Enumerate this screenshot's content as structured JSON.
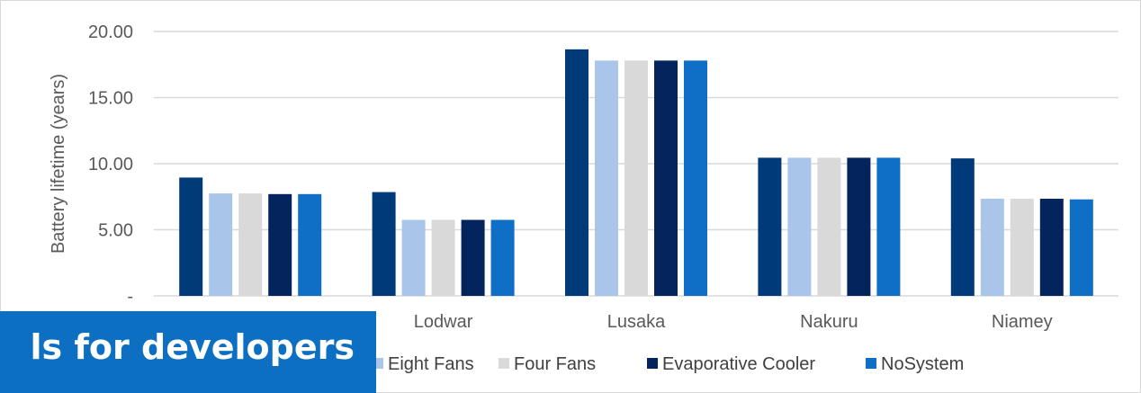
{
  "chart_data": {
    "type": "bar",
    "title": "",
    "xlabel": "",
    "ylabel": "Battery lifetime (years)",
    "ylim": [
      0,
      20
    ],
    "yticks": [
      {
        "value": 0,
        "label": "-"
      },
      {
        "value": 5,
        "label": "5.00"
      },
      {
        "value": 10,
        "label": "10.00"
      },
      {
        "value": 15,
        "label": "15.00"
      },
      {
        "value": 20,
        "label": "20.00"
      }
    ],
    "grid": true,
    "legend_position": "bottom",
    "categories": [
      "",
      "Lodwar",
      "Lusaka",
      "Nakuru",
      "Niamey"
    ],
    "series": [
      {
        "name": "",
        "color": "#003a78",
        "values": [
          8.95,
          7.85,
          18.65,
          10.45,
          10.4
        ]
      },
      {
        "name": "Eight Fans",
        "color": "#a9c6ea",
        "values": [
          7.75,
          5.75,
          17.8,
          10.45,
          7.35
        ]
      },
      {
        "name": "Four Fans",
        "color": "#d9d9d9",
        "values": [
          7.75,
          5.75,
          17.8,
          10.45,
          7.35
        ]
      },
      {
        "name": "Evaporative Cooler",
        "color": "#04245e",
        "values": [
          7.7,
          5.75,
          17.8,
          10.45,
          7.35
        ]
      },
      {
        "name": "NoSystem",
        "color": "#0f6fc6",
        "values": [
          7.7,
          5.75,
          17.8,
          10.45,
          7.3
        ]
      }
    ]
  },
  "banner": {
    "text": "ls for developers",
    "background": "#0d6fc2"
  }
}
